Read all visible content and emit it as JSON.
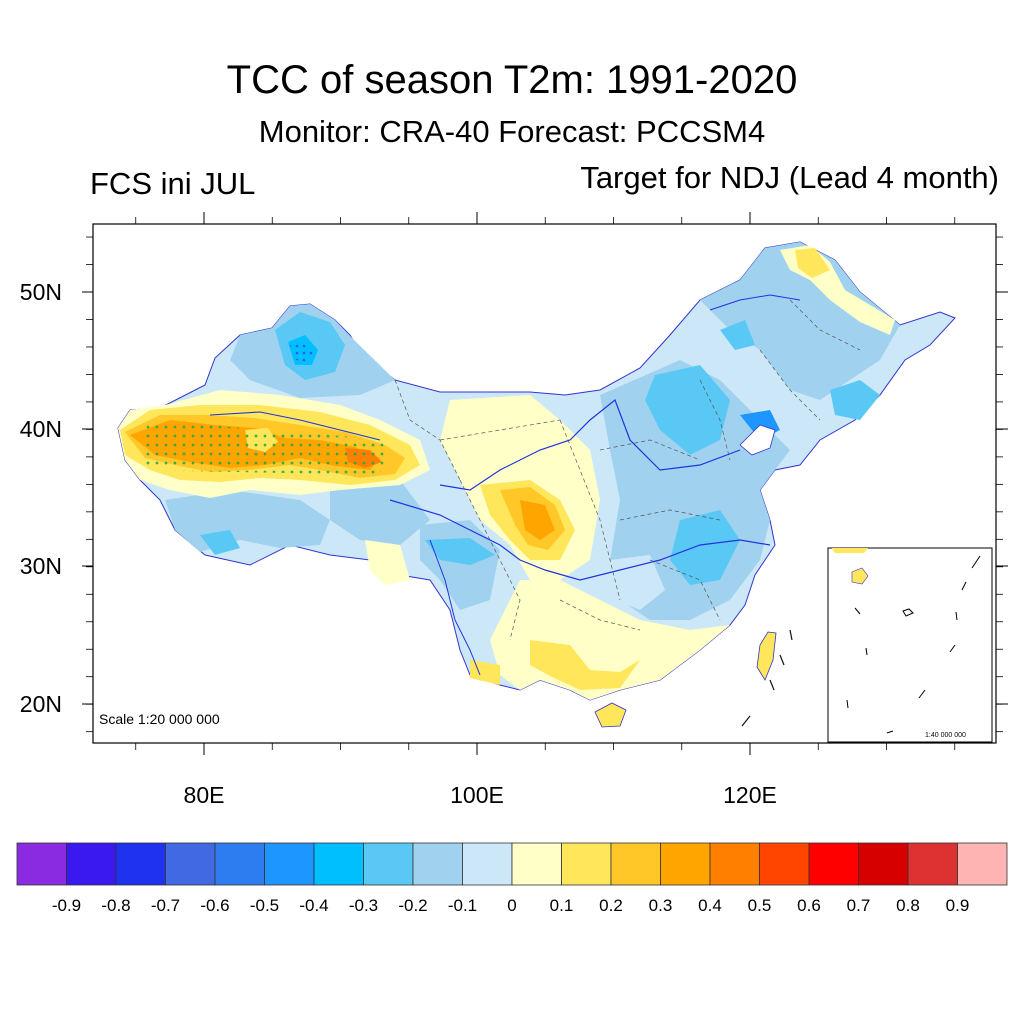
{
  "title": "TCC of season T2m: 1991-2020",
  "subtitle": "Monitor: CRA-40   Forecast: PCCSM4",
  "left_label": "FCS ini JUL",
  "right_label": "Target for NDJ (Lead 4 month)",
  "map": {
    "lat_labels": [
      "50N",
      "40N",
      "30N",
      "20N"
    ],
    "lon_labels": [
      "80E",
      "100E",
      "120E"
    ],
    "scale_label": "Scale 1:20 000 000",
    "inset_scale_label": "1:40 000 000"
  },
  "colorbar": {
    "labels": [
      "-0.9",
      "-0.8",
      "-0.7",
      "-0.6",
      "-0.5",
      "-0.4",
      "-0.3",
      "-0.2",
      "-0.1",
      "0",
      "0.1",
      "0.2",
      "0.3",
      "0.4",
      "0.5",
      "0.6",
      "0.7",
      "0.8",
      "0.9"
    ],
    "colors": [
      "#8a2be2",
      "#3a18f0",
      "#1e32f0",
      "#4169e1",
      "#2e7df0",
      "#1e96ff",
      "#00bfff",
      "#5ac8f5",
      "#a0d2f0",
      "#cce8f8",
      "#ffffc8",
      "#ffe65a",
      "#ffc828",
      "#ffa500",
      "#ff7f00",
      "#ff4500",
      "#ff0000",
      "#d70000",
      "#dc3232",
      "#ffb4b4"
    ]
  }
}
